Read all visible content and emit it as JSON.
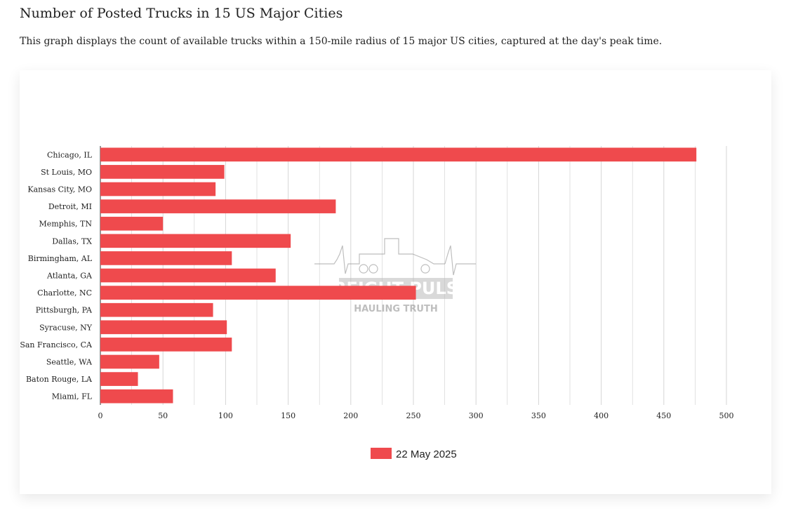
{
  "page": {
    "title": "Number of Posted Trucks in 15 US Major Cities",
    "description": "This graph displays the count of available trucks within a 150-mile radius of 15 major US cities, captured at the day's peak time."
  },
  "watermark": {
    "brand": "FREIGHT PULSE",
    "tagline": "HAULING TRUTH"
  },
  "colors": {
    "bar": "#ef4a4d",
    "grid": "#d6d6d6",
    "axis": "#555555"
  },
  "chart_data": {
    "type": "bar",
    "orientation": "horizontal",
    "title": "Number of Posted Trucks in 15 US Major Cities",
    "xlabel": "",
    "ylabel": "",
    "xlim": [
      0,
      500
    ],
    "xticks": [
      0,
      50,
      100,
      150,
      200,
      250,
      300,
      350,
      400,
      450,
      500
    ],
    "grid": true,
    "legend_position": "bottom-center",
    "categories": [
      "Chicago, IL",
      "St Louis, MO",
      "Kansas City, MO",
      "Detroit, MI",
      "Memphis, TN",
      "Dallas, TX",
      "Birmingham, AL",
      "Atlanta, GA",
      "Charlotte, NC",
      "Pittsburgh, PA",
      "Syracuse, NY",
      "San Francisco, CA",
      "Seattle, WA",
      "Baton Rouge, LA",
      "Miami, FL"
    ],
    "series": [
      {
        "name": "22 May 2025",
        "values": [
          476,
          99,
          92,
          188,
          50,
          152,
          105,
          140,
          252,
          90,
          101,
          105,
          47,
          30,
          58
        ]
      }
    ]
  }
}
